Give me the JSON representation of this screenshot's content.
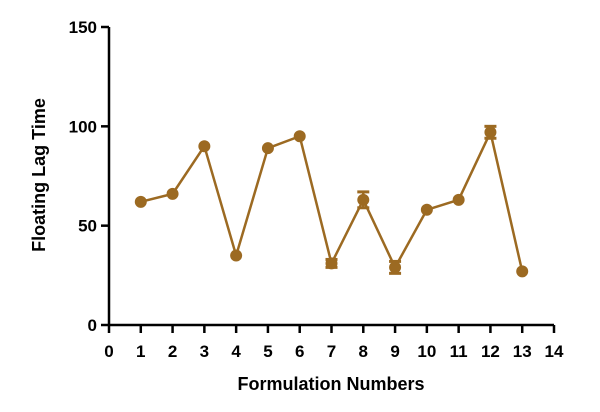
{
  "chart_data": {
    "type": "line",
    "title": "",
    "xlabel": "Formulation Numbers",
    "ylabel": "Floating Lag Time",
    "xlim": [
      0,
      14
    ],
    "ylim": [
      0,
      150
    ],
    "x_ticks": [
      0,
      1,
      2,
      3,
      4,
      5,
      6,
      7,
      8,
      9,
      10,
      11,
      12,
      13,
      14
    ],
    "y_ticks": [
      0,
      50,
      100,
      150
    ],
    "grid": false,
    "legend": "none",
    "series": [
      {
        "color": "#9c6a22",
        "x": [
          1,
          2,
          3,
          4,
          5,
          6,
          7,
          8,
          9,
          10,
          11,
          12,
          13
        ],
        "y": [
          62,
          66,
          90,
          35,
          89,
          95,
          31,
          63,
          29,
          58,
          63,
          97,
          27
        ],
        "error": [
          0,
          0,
          0,
          0,
          0,
          0,
          2,
          4,
          3,
          0,
          0,
          3,
          0
        ]
      }
    ]
  }
}
